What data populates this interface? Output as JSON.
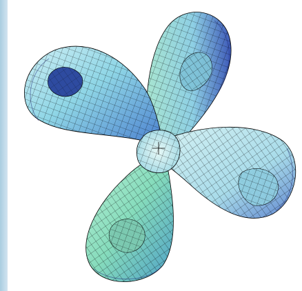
{
  "scene": {
    "subject": "four-lobed-tube-knot-surface",
    "icon": "knot-surface-icon",
    "palette": {
      "background": "#ffffff",
      "frame": "#c4dceb",
      "tube_light": "#d8f4ef",
      "tube_mid": "#9fdce6",
      "tube_green": "#8fe0b4",
      "tube_blue": "#5f86dc",
      "tube_dark": "#2d3f9a",
      "mesh": "#000000"
    }
  }
}
